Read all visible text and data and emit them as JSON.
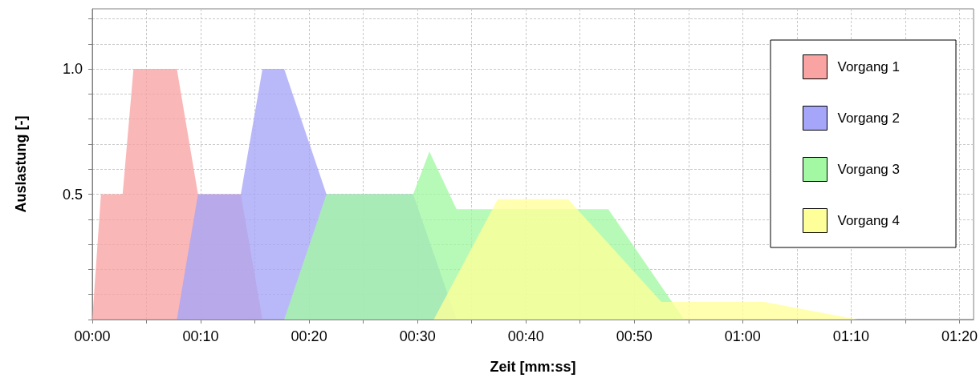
{
  "chart_data": {
    "type": "area",
    "xlabel": "Zeit [mm:ss]",
    "ylabel": "Auslastung [-]",
    "series": [
      {
        "name": "Vorgang 1",
        "color": "#f9a3a3",
        "x": [
          0,
          0.8,
          2.8,
          3.8,
          7.8,
          9.75,
          13.7,
          15.7
        ],
        "values": [
          0,
          0.5,
          0.5,
          1.0,
          1.0,
          0.5,
          0.5,
          0
        ]
      },
      {
        "name": "Vorgang 2",
        "color": "#a5a5f9",
        "x": [
          7.8,
          9.75,
          13.7,
          15.7,
          17.7,
          21.6,
          29.6,
          33.6
        ],
        "values": [
          0,
          0.5,
          0.5,
          1.0,
          1.0,
          0.5,
          0.5,
          0
        ]
      },
      {
        "name": "Vorgang 3",
        "color": "#a3f9a3",
        "x": [
          17.7,
          21.6,
          29.6,
          31.1,
          33.6,
          47.6,
          54.6
        ],
        "values": [
          0,
          0.5,
          0.5,
          0.67,
          0.44,
          0.44,
          0
        ]
      },
      {
        "name": "Vorgang 4",
        "color": "#ffff99",
        "x": [
          31.5,
          37.4,
          43.9,
          52.5,
          62,
          70.6
        ],
        "values": [
          0,
          0.48,
          0.48,
          0.07,
          0.07,
          0
        ]
      }
    ],
    "xlim": [
      0,
      81.3
    ],
    "ylim": [
      0,
      1.24
    ],
    "xticks": [
      {
        "value": 0,
        "label": "00:00"
      },
      {
        "value": 5,
        "label": null
      },
      {
        "value": 10,
        "label": "00:10"
      },
      {
        "value": 15,
        "label": null
      },
      {
        "value": 20,
        "label": "00:20"
      },
      {
        "value": 25,
        "label": null
      },
      {
        "value": 30,
        "label": "00:30"
      },
      {
        "value": 35,
        "label": null
      },
      {
        "value": 40,
        "label": "00:40"
      },
      {
        "value": 45,
        "label": null
      },
      {
        "value": 50,
        "label": "00:50"
      },
      {
        "value": 55,
        "label": null
      },
      {
        "value": 60,
        "label": "01:00"
      },
      {
        "value": 65,
        "label": null
      },
      {
        "value": 70,
        "label": "01:10"
      },
      {
        "value": 75,
        "label": null
      },
      {
        "value": 80,
        "label": "01:20"
      }
    ],
    "yticks": [
      {
        "value": 0,
        "label": null
      },
      {
        "value": 0.1,
        "label": null
      },
      {
        "value": 0.2,
        "label": null
      },
      {
        "value": 0.3,
        "label": null
      },
      {
        "value": 0.4,
        "label": null
      },
      {
        "value": 0.5,
        "label": "0.5"
      },
      {
        "value": 0.6,
        "label": null
      },
      {
        "value": 0.7,
        "label": null
      },
      {
        "value": 0.8,
        "label": null
      },
      {
        "value": 0.9,
        "label": null
      },
      {
        "value": 1.0,
        "label": "1.0"
      },
      {
        "value": 1.1,
        "label": null
      },
      {
        "value": 1.2,
        "label": null
      }
    ],
    "grid": true,
    "legend": "top right",
    "marker": "none"
  }
}
